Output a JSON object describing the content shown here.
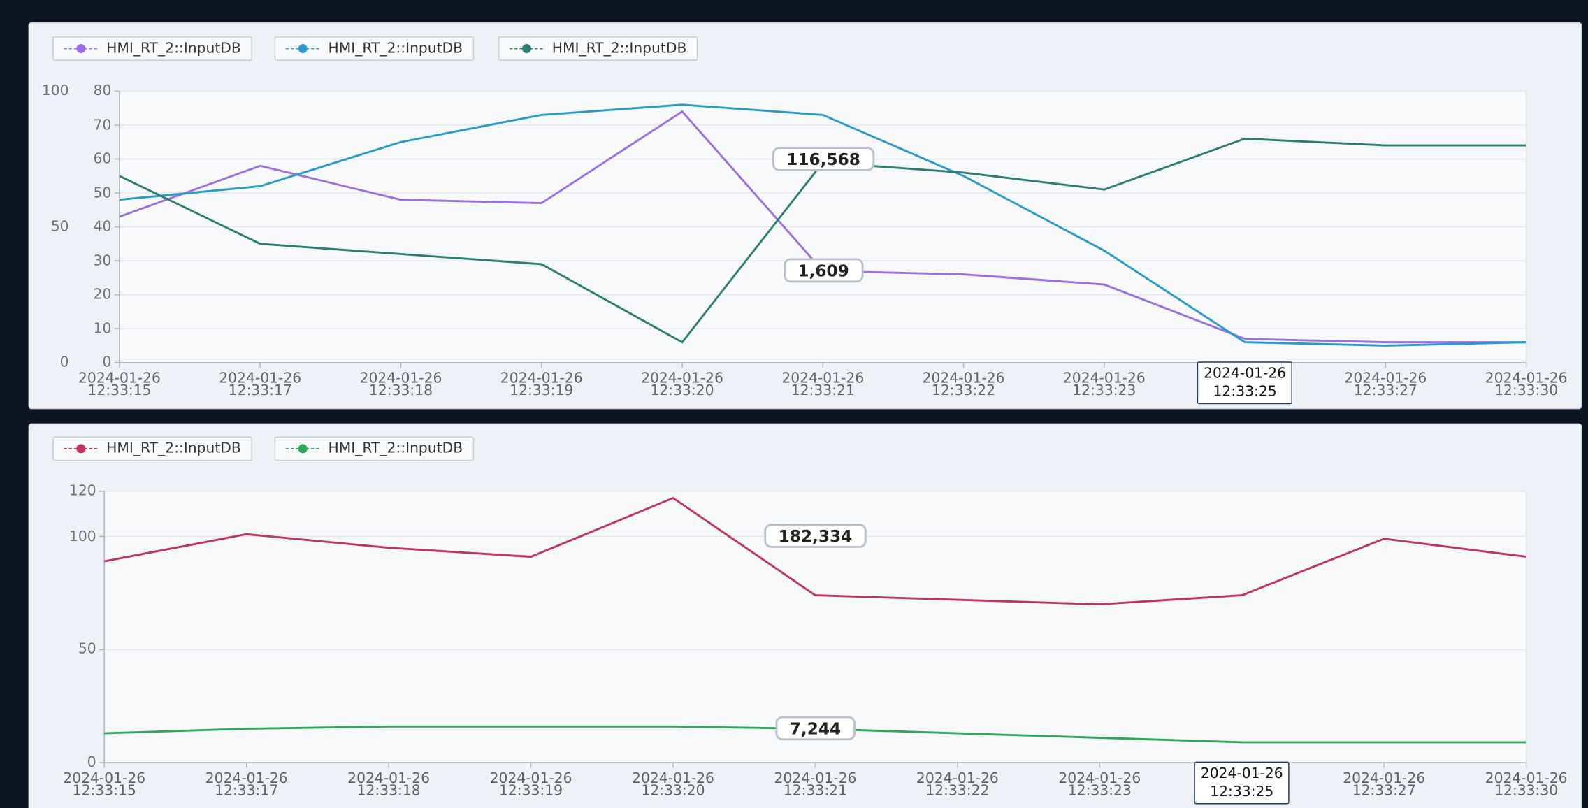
{
  "chart_data": [
    {
      "type": "line",
      "categories": [
        "2024-01-26 12:33:15",
        "2024-01-26 12:33:17",
        "2024-01-26 12:33:18",
        "2024-01-26 12:33:19",
        "2024-01-26 12:33:20",
        "2024-01-26 12:33:21",
        "2024-01-26 12:33:22",
        "2024-01-26 12:33:23",
        "2024-01-26 12:33:25",
        "2024-01-26 12:33:27",
        "2024-01-26 12:33:30"
      ],
      "highlighted_category": 8,
      "series": [
        {
          "name": "HMI_RT_2::InputDB",
          "color": "#9b6ee6",
          "values": [
            43,
            58,
            48,
            47,
            74,
            27,
            26,
            23,
            7,
            6,
            6
          ]
        },
        {
          "name": "HMI_RT_2::InputDB",
          "color": "#2a9ac8",
          "values": [
            48,
            52,
            65,
            73,
            76,
            73,
            55,
            33,
            6,
            5,
            6
          ]
        },
        {
          "name": "HMI_RT_2::InputDB",
          "color": "#2a7f72",
          "values": [
            55,
            35,
            32,
            29,
            6,
            59,
            56,
            51,
            66,
            64,
            64
          ]
        }
      ],
      "annotations": [
        "116,568",
        "1,609"
      ],
      "ylim": [
        0,
        80
      ],
      "yticks": [
        0,
        10,
        20,
        30,
        40,
        50,
        60,
        70,
        80
      ],
      "y2lim": [
        0,
        100
      ],
      "y2ticks": [
        0,
        50,
        100
      ],
      "grid": true
    },
    {
      "type": "line",
      "categories": [
        "2024-01-26 12:33:15",
        "2024-01-26 12:33:17",
        "2024-01-26 12:33:18",
        "2024-01-26 12:33:19",
        "2024-01-26 12:33:20",
        "2024-01-26 12:33:21",
        "2024-01-26 12:33:22",
        "2024-01-26 12:33:23",
        "2024-01-26 12:33:25",
        "2024-01-26 12:33:27",
        "2024-01-26 12:33:30"
      ],
      "highlighted_category": 8,
      "series": [
        {
          "name": "HMI_RT_2::InputDB",
          "color": "#c0345f",
          "values": [
            89,
            101,
            95,
            91,
            117,
            74,
            72,
            70,
            74,
            99,
            91
          ]
        },
        {
          "name": "HMI_RT_2::InputDB",
          "color": "#2ea85a",
          "values": [
            13,
            15,
            16,
            16,
            16,
            15,
            13,
            11,
            9,
            9,
            9
          ]
        }
      ],
      "annotations": [
        "182,334",
        "7,244"
      ],
      "ylim": [
        0,
        120
      ],
      "yticks": [
        0,
        50,
        100,
        120
      ],
      "grid": true
    }
  ]
}
